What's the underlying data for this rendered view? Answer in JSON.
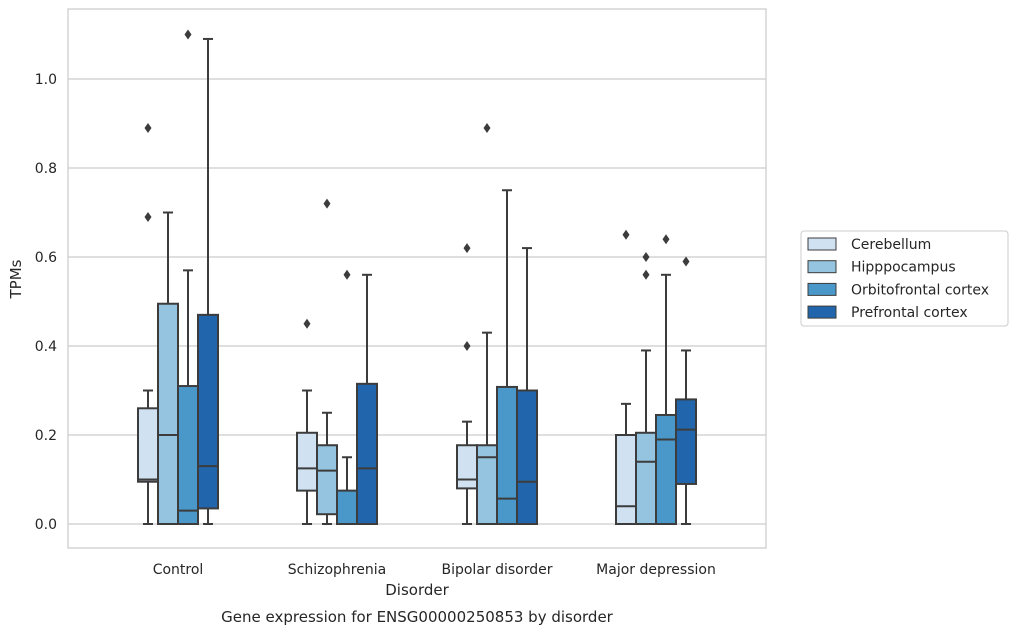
{
  "chart_data": {
    "type": "box",
    "title": "",
    "caption": "Gene expression for ENSG00000250853 by disorder",
    "xlabel": "Disorder",
    "ylabel": "TPMs",
    "ylim": [
      -0.05,
      1.16
    ],
    "yticks": [
      0.0,
      0.2,
      0.4,
      0.6,
      0.8,
      1.0
    ],
    "ytick_labels": [
      "0.0",
      "0.2",
      "0.4",
      "0.6",
      "0.8",
      "1.0"
    ],
    "grid": "horizontal",
    "legend_position": "right",
    "categories": [
      "Control",
      "Schizophrenia",
      "Bipolar disorder",
      "Major depression"
    ],
    "series": [
      {
        "name": "Cerebellum",
        "color": "#d0e1f2",
        "boxes": [
          {
            "whislo": 0.0,
            "q1": 0.095,
            "med": 0.1,
            "q3": 0.26,
            "whishi": 0.3,
            "fliers": [
              0.69,
              0.89
            ]
          },
          {
            "whislo": 0.0,
            "q1": 0.075,
            "med": 0.125,
            "q3": 0.205,
            "whishi": 0.3,
            "fliers": [
              0.45
            ]
          },
          {
            "whislo": 0.0,
            "q1": 0.08,
            "med": 0.1,
            "q3": 0.177,
            "whishi": 0.23,
            "fliers": [
              0.4,
              0.62
            ]
          },
          {
            "whislo": 0.0,
            "q1": 0.0,
            "med": 0.04,
            "q3": 0.2,
            "whishi": 0.27,
            "fliers": [
              0.65
            ]
          }
        ]
      },
      {
        "name": "Hipppocampus",
        "color": "#94c4df",
        "boxes": [
          {
            "whislo": 0.0,
            "q1": 0.0,
            "med": 0.2,
            "q3": 0.495,
            "whishi": 0.7,
            "fliers": []
          },
          {
            "whislo": 0.0,
            "q1": 0.022,
            "med": 0.12,
            "q3": 0.177,
            "whishi": 0.25,
            "fliers": [
              0.72
            ]
          },
          {
            "whislo": 0.0,
            "q1": 0.0,
            "med": 0.15,
            "q3": 0.177,
            "whishi": 0.43,
            "fliers": [
              0.89
            ]
          },
          {
            "whislo": 0.0,
            "q1": 0.0,
            "med": 0.14,
            "q3": 0.205,
            "whishi": 0.39,
            "fliers": [
              0.56,
              0.6
            ]
          }
        ]
      },
      {
        "name": "Orbitofrontal cortex",
        "color": "#4a98c9",
        "boxes": [
          {
            "whislo": 0.0,
            "q1": 0.0,
            "med": 0.03,
            "q3": 0.31,
            "whishi": 0.57,
            "fliers": [
              1.1
            ]
          },
          {
            "whislo": 0.0,
            "q1": 0.0,
            "med": 0.0,
            "q3": 0.075,
            "whishi": 0.15,
            "fliers": [
              0.56
            ]
          },
          {
            "whislo": 0.0,
            "q1": 0.0,
            "med": 0.057,
            "q3": 0.308,
            "whishi": 0.75,
            "fliers": []
          },
          {
            "whislo": 0.0,
            "q1": 0.0,
            "med": 0.19,
            "q3": 0.245,
            "whishi": 0.56,
            "fliers": [
              0.64
            ]
          }
        ]
      },
      {
        "name": "Prefrontal cortex",
        "color": "#2166ac",
        "boxes": [
          {
            "whislo": 0.0,
            "q1": 0.035,
            "med": 0.13,
            "q3": 0.47,
            "whishi": 1.09,
            "fliers": []
          },
          {
            "whislo": 0.0,
            "q1": 0.0,
            "med": 0.125,
            "q3": 0.315,
            "whishi": 0.56,
            "fliers": []
          },
          {
            "whislo": 0.0,
            "q1": 0.0,
            "med": 0.095,
            "q3": 0.3,
            "whishi": 0.62,
            "fliers": []
          },
          {
            "whislo": 0.0,
            "q1": 0.09,
            "med": 0.212,
            "q3": 0.28,
            "whishi": 0.39,
            "fliers": [
              0.59
            ]
          }
        ]
      }
    ]
  }
}
